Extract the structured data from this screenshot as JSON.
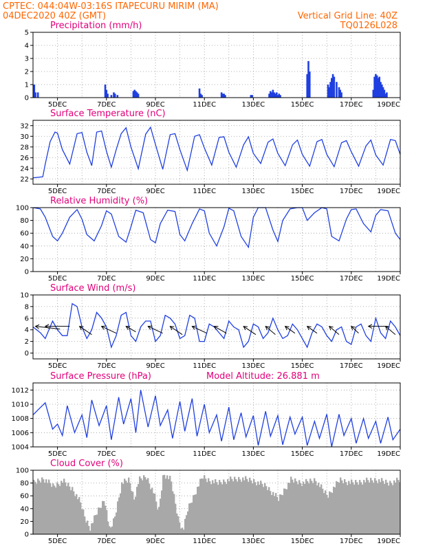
{
  "header": {
    "left_line1": "CPTEC:   044:04W-03:16S   ITAPECURU MIRIM (MA)",
    "left_line2": "04DEC2020 40Z (GMT)",
    "right_line1": "Vertical Grid Line: 40Z",
    "right_line2": "TQ0126L028"
  },
  "colors": {
    "header": "#ff6600",
    "title": "#e0007a",
    "series": "#1f3fe0",
    "cloud": "#a8a8a8",
    "wind_arrow": "#000000"
  },
  "x_axis": {
    "start_day": 4,
    "end_day": 19,
    "tick_labels": [
      "5DEC",
      "7DEC",
      "9DEC",
      "11DEC",
      "13DEC",
      "15DEC",
      "17DEC",
      "19DEC"
    ]
  },
  "chart_data": [
    {
      "type": "bar",
      "title": "Precipitation (mm/h)",
      "ylim": [
        0,
        5
      ],
      "yticks": [
        0,
        1,
        2,
        3,
        4,
        5
      ],
      "grid": true,
      "x_unit": "days since 04DEC",
      "x": [
        0.05,
        0.1,
        0.2,
        2.95,
        3.0,
        3.05,
        3.2,
        3.3,
        3.35,
        3.45,
        4.1,
        4.15,
        4.2,
        4.25,
        4.3,
        6.8,
        6.85,
        6.9,
        7.7,
        7.75,
        7.8,
        7.85,
        8.9,
        8.95,
        9.65,
        9.7,
        9.75,
        9.8,
        9.85,
        9.9,
        9.95,
        10.0,
        10.05,
        10.1,
        11.2,
        11.25,
        11.3,
        12.05,
        12.1,
        12.15,
        12.2,
        12.25,
        12.3,
        12.4,
        12.5,
        12.55,
        12.6,
        13.9,
        13.95,
        14.0,
        14.05,
        14.1,
        14.15,
        14.2,
        14.25,
        14.3,
        14.35,
        14.4,
        14.45
      ],
      "values": [
        1.0,
        0.4,
        0.4,
        1.0,
        0.6,
        0.3,
        0.2,
        0.4,
        0.3,
        0.2,
        0.5,
        0.6,
        0.5,
        0.4,
        0.3,
        0.7,
        0.3,
        0.2,
        0.4,
        0.3,
        0.3,
        0.2,
        0.2,
        0.2,
        0.3,
        0.5,
        0.4,
        0.6,
        0.4,
        0.3,
        0.4,
        0.2,
        0.3,
        0.2,
        1.8,
        2.8,
        2.0,
        1.0,
        0.8,
        1.2,
        1.5,
        1.8,
        1.6,
        1.2,
        0.8,
        0.6,
        0.4,
        0.6,
        1.6,
        1.8,
        1.7,
        1.5,
        1.6,
        1.2,
        1.0,
        0.8,
        0.6,
        0.3,
        0.4
      ],
      "x_fix_note": ""
    },
    {
      "type": "line",
      "title": "Surface Temperature (nC)",
      "ylim": [
        21,
        33
      ],
      "yticks": [
        22,
        24,
        26,
        28,
        30,
        32
      ],
      "grid": true,
      "series": [
        {
          "x": [
            0,
            0.4,
            0.5,
            0.7,
            0.9,
            1.0,
            1.2,
            1.5,
            1.8,
            2.0,
            2.2,
            2.4,
            2.6,
            2.8,
            3.0,
            3.2,
            3.4,
            3.6,
            3.8,
            4.0,
            4.3,
            4.6,
            4.8,
            5.0,
            5.3,
            5.6,
            5.8,
            6.0,
            6.3,
            6.6,
            6.8,
            7.0,
            7.3,
            7.6,
            7.8,
            8.0,
            8.3,
            8.6,
            8.8,
            9.0,
            9.3,
            9.6,
            9.8,
            10.0,
            10.3,
            10.6,
            10.8,
            11.0,
            11.3,
            11.6,
            11.8,
            12.0,
            12.3,
            12.6,
            12.8,
            13.0,
            13.3,
            13.6,
            13.8,
            14.0,
            14.3,
            14.6,
            14.8,
            15.0
          ],
          "values": [
            22.2,
            22.4,
            24.8,
            29.0,
            30.8,
            30.6,
            27.5,
            24.8,
            30.5,
            30.7,
            27.0,
            24.5,
            30.8,
            31.0,
            27.2,
            24.2,
            27.5,
            30.5,
            31.6,
            28.0,
            23.9,
            30.4,
            31.7,
            28.5,
            23.8,
            30.3,
            30.5,
            27.5,
            23.6,
            30.0,
            30.3,
            27.8,
            24.6,
            29.8,
            29.9,
            27.0,
            24.2,
            28.4,
            29.9,
            26.8,
            24.9,
            28.9,
            29.5,
            26.8,
            24.5,
            28.4,
            29.3,
            26.6,
            24.4,
            29.0,
            29.4,
            26.6,
            24.3,
            28.8,
            29.2,
            27.1,
            24.4,
            28.2,
            29.3,
            26.5,
            24.6,
            29.4,
            29.2,
            26.6
          ]
        }
      ]
    },
    {
      "type": "line",
      "title": "Relative Humidity (%)",
      "ylim": [
        0,
        100
      ],
      "yticks": [
        0,
        20,
        40,
        60,
        80,
        100
      ],
      "grid": true,
      "series": [
        {
          "x": [
            0,
            0.3,
            0.5,
            0.8,
            1.0,
            1.2,
            1.5,
            1.8,
            2.0,
            2.2,
            2.5,
            2.8,
            3.0,
            3.2,
            3.5,
            3.8,
            4.0,
            4.2,
            4.5,
            4.8,
            5.0,
            5.2,
            5.5,
            5.8,
            6.0,
            6.2,
            6.5,
            6.8,
            7.0,
            7.2,
            7.5,
            7.8,
            8.0,
            8.2,
            8.5,
            8.8,
            9.0,
            9.2,
            9.5,
            9.8,
            10.0,
            10.2,
            10.5,
            10.8,
            11.0,
            11.2,
            11.5,
            11.8,
            12.0,
            12.2,
            12.5,
            12.8,
            13.0,
            13.2,
            13.5,
            13.8,
            14.0,
            14.2,
            14.5,
            14.8,
            15.0
          ],
          "values": [
            100,
            98,
            85,
            55,
            48,
            60,
            85,
            97,
            82,
            58,
            48,
            72,
            95,
            90,
            55,
            46,
            70,
            96,
            92,
            50,
            45,
            75,
            96,
            94,
            58,
            48,
            75,
            98,
            95,
            60,
            40,
            70,
            99,
            95,
            55,
            38,
            85,
            100,
            100,
            65,
            47,
            80,
            98,
            100,
            100,
            80,
            92,
            100,
            98,
            55,
            48,
            82,
            97,
            98,
            75,
            62,
            88,
            97,
            95,
            60,
            50
          ]
        }
      ]
    },
    {
      "type": "line",
      "title": "Surface Wind (m/s)",
      "ylim": [
        -1,
        10
      ],
      "yticks": [
        0,
        2,
        4,
        6,
        8,
        10
      ],
      "grid": true,
      "series": [
        {
          "x": [
            0,
            0.3,
            0.5,
            0.8,
            1.0,
            1.2,
            1.4,
            1.6,
            1.8,
            2.0,
            2.2,
            2.4,
            2.6,
            2.8,
            3.0,
            3.2,
            3.4,
            3.6,
            3.8,
            4.0,
            4.2,
            4.4,
            4.6,
            4.8,
            5.0,
            5.2,
            5.4,
            5.6,
            5.8,
            6.0,
            6.2,
            6.4,
            6.6,
            6.8,
            7.0,
            7.2,
            7.4,
            7.6,
            7.8,
            8.0,
            8.2,
            8.4,
            8.6,
            8.8,
            9.0,
            9.2,
            9.4,
            9.6,
            9.8,
            10.0,
            10.2,
            10.4,
            10.6,
            10.8,
            11.0,
            11.2,
            11.4,
            11.6,
            11.8,
            12.0,
            12.2,
            12.4,
            12.6,
            12.8,
            13.0,
            13.2,
            13.4,
            13.6,
            13.8,
            14.0,
            14.2,
            14.4,
            14.6,
            14.8,
            15.0
          ],
          "values": [
            4.5,
            3.5,
            2.5,
            5.5,
            4.0,
            3.0,
            3.0,
            8.5,
            8.0,
            4.5,
            2.5,
            4.0,
            7.0,
            6.0,
            4.5,
            1.0,
            3.0,
            6.5,
            7.0,
            3.0,
            2.0,
            4.5,
            5.5,
            5.5,
            2.0,
            3.0,
            6.5,
            6.0,
            5.0,
            2.5,
            3.0,
            6.5,
            6.0,
            2.0,
            2.0,
            5.0,
            4.5,
            3.5,
            2.5,
            5.5,
            4.5,
            4.0,
            1.0,
            2.0,
            5.0,
            4.5,
            2.5,
            3.5,
            6.0,
            4.0,
            2.5,
            3.0,
            5.0,
            4.0,
            2.5,
            1.0,
            3.5,
            5.0,
            4.5,
            3.0,
            2.0,
            4.0,
            4.5,
            2.0,
            1.5,
            4.5,
            5.0,
            3.0,
            2.0,
            6.0,
            3.5,
            2.5,
            5.5,
            4.5,
            3.0
          ]
        }
      ],
      "arrows": [
        {
          "x": 0.1,
          "dx": 1.0,
          "dy": -0.2
        },
        {
          "x": 0.5,
          "dx": 1.0,
          "dy": 0
        },
        {
          "x": 1.9,
          "dx": 0.5,
          "dy": -0.6
        },
        {
          "x": 2.8,
          "dx": 0.6,
          "dy": -0.5
        },
        {
          "x": 3.8,
          "dx": 0.4,
          "dy": -0.4
        },
        {
          "x": 4.7,
          "dx": 0.6,
          "dy": -0.5
        },
        {
          "x": 5.6,
          "dx": 0.5,
          "dy": -0.6
        },
        {
          "x": 6.5,
          "dx": 0.6,
          "dy": -0.5
        },
        {
          "x": 7.4,
          "dx": 0.5,
          "dy": -0.5
        },
        {
          "x": 8.6,
          "dx": 0.5,
          "dy": -0.6
        },
        {
          "x": 9.5,
          "dx": 0.4,
          "dy": -0.6
        },
        {
          "x": 10.3,
          "dx": 0.4,
          "dy": -0.5
        },
        {
          "x": 11.2,
          "dx": 0.4,
          "dy": -0.5
        },
        {
          "x": 12.1,
          "dx": 0.4,
          "dy": -0.6
        },
        {
          "x": 13.0,
          "dx": 0.3,
          "dy": -0.5
        },
        {
          "x": 13.7,
          "dx": 0.8,
          "dy": 0
        },
        {
          "x": 14.4,
          "dx": 0.4,
          "dy": -0.6
        }
      ]
    },
    {
      "type": "line",
      "title": "Surface Pressure (hPa)",
      "annotation": "Model Altitude: 26.881 m",
      "ylim": [
        1004,
        1013
      ],
      "yticks": [
        1004,
        1006,
        1008,
        1010,
        1012
      ],
      "grid": true,
      "series": [
        {
          "x": [
            0,
            0.2,
            0.5,
            0.8,
            1.0,
            1.2,
            1.4,
            1.7,
            2.0,
            2.2,
            2.4,
            2.7,
            3.0,
            3.2,
            3.5,
            3.7,
            4.0,
            4.2,
            4.4,
            4.7,
            5.0,
            5.2,
            5.5,
            5.7,
            6.0,
            6.2,
            6.5,
            6.7,
            7.0,
            7.2,
            7.5,
            7.7,
            8.0,
            8.2,
            8.5,
            8.7,
            9.0,
            9.2,
            9.5,
            9.7,
            10.0,
            10.2,
            10.5,
            10.7,
            11.0,
            11.2,
            11.5,
            11.7,
            12.0,
            12.2,
            12.5,
            12.7,
            13.0,
            13.2,
            13.5,
            13.7,
            14.0,
            14.2,
            14.5,
            14.7,
            15.0
          ],
          "values": [
            1008.5,
            1009.2,
            1010.2,
            1006.5,
            1007.2,
            1005.6,
            1009.8,
            1006.0,
            1008.5,
            1005.3,
            1010.6,
            1007.0,
            1009.8,
            1005.0,
            1011.0,
            1007.2,
            1010.8,
            1006.0,
            1012.0,
            1006.8,
            1011.2,
            1007.0,
            1009.2,
            1005.2,
            1010.4,
            1006.2,
            1010.8,
            1005.5,
            1010.0,
            1006.0,
            1008.5,
            1004.8,
            1009.6,
            1005.0,
            1008.8,
            1005.4,
            1008.4,
            1004.2,
            1009.0,
            1005.5,
            1008.4,
            1004.3,
            1008.2,
            1005.8,
            1008.2,
            1004.2,
            1007.6,
            1005.2,
            1008.6,
            1004.0,
            1008.6,
            1005.6,
            1008.0,
            1004.5,
            1008.0,
            1005.2,
            1007.6,
            1004.5,
            1008.2,
            1005.0,
            1006.5
          ]
        }
      ]
    },
    {
      "type": "area",
      "title": "Cloud Cover (%)",
      "ylim": [
        0,
        100
      ],
      "yticks": [
        0,
        20,
        40,
        60,
        80,
        100
      ],
      "grid": true,
      "series": [
        {
          "x": [
            0,
            0.4,
            0.8,
            1.2,
            1.6,
            1.9,
            2.1,
            2.3,
            2.6,
            2.9,
            3.1,
            3.3,
            3.6,
            3.9,
            4.1,
            4.3,
            4.6,
            4.9,
            5.1,
            5.3,
            5.6,
            5.9,
            6.1,
            6.3,
            6.6,
            6.9,
            7.1,
            7.5,
            8.0,
            8.5,
            9.0,
            9.5,
            10.0,
            10.5,
            11.0,
            11.5,
            12.0,
            12.5,
            13.0,
            13.5,
            14.0,
            14.5,
            15.0
          ],
          "values": [
            85,
            92,
            80,
            88,
            75,
            55,
            30,
            15,
            40,
            60,
            10,
            30,
            85,
            90,
            60,
            90,
            95,
            70,
            40,
            100,
            90,
            30,
            10,
            45,
            70,
            95,
            90,
            85,
            90,
            92,
            88,
            80,
            60,
            90,
            85,
            90,
            65,
            90,
            85,
            88,
            90,
            85,
            90
          ]
        }
      ]
    }
  ]
}
